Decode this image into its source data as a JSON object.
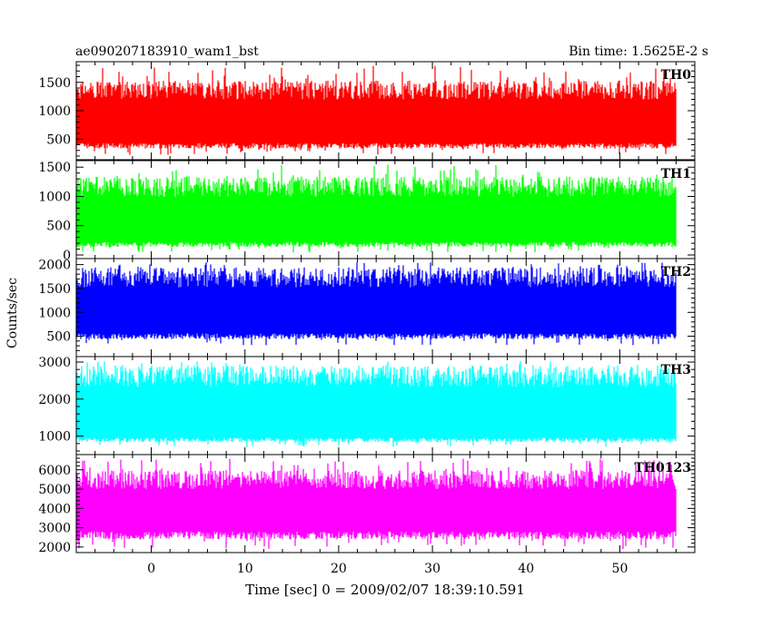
{
  "header": {
    "title": "ae090207183910_wam1_bst",
    "bin_time": "Bin time: 1.5625E-2 s"
  },
  "chart_data": {
    "type": "line",
    "xlabel": "Time [sec] 0 = 2009/02/07 18:39:10.591",
    "ylabel": "Counts/sec",
    "xlim": [
      -8.0,
      58.0
    ],
    "data_x_range": [
      -8.0,
      56.0
    ],
    "x_ticks": [
      0,
      10,
      20,
      30,
      40,
      50
    ],
    "x_tick_labels": [
      "0",
      "10",
      "20",
      "30",
      "40",
      "50"
    ],
    "x_minor_step": 2,
    "panels": [
      {
        "name": "TH0",
        "color": "#ff0000",
        "ylim": [
          200,
          1800
        ],
        "y_ticks": [
          500,
          1000,
          1500
        ],
        "y_tick_labels": [
          "500",
          "1000",
          "1500"
        ],
        "y_minor_step": 100,
        "mean": 820,
        "typical_low": 380,
        "typical_high": 1300,
        "min": 220,
        "max": 1800
      },
      {
        "name": "TH1",
        "color": "#00ff00",
        "ylim": [
          0,
          1550
        ],
        "y_ticks": [
          0,
          500,
          1000,
          1500
        ],
        "y_tick_labels": [
          "0",
          "500",
          "1000",
          "1500"
        ],
        "y_minor_step": 100,
        "mean": 600,
        "typical_low": 180,
        "typical_high": 1100,
        "min": 40,
        "max": 1550
      },
      {
        "name": "TH2",
        "color": "#0000ff",
        "ylim": [
          150,
          2050
        ],
        "y_ticks": [
          500,
          1000,
          1500,
          2000
        ],
        "y_tick_labels": [
          "500",
          "1000",
          "1500",
          "2000"
        ],
        "y_minor_step": 100,
        "mean": 1050,
        "typical_low": 500,
        "typical_high": 1650,
        "min": 300,
        "max": 2050
      },
      {
        "name": "TH3",
        "color": "#00ffff",
        "ylim": [
          600,
          3050
        ],
        "y_ticks": [
          1000,
          2000,
          3000
        ],
        "y_tick_labels": [
          "1000",
          "2000",
          "3000"
        ],
        "y_minor_step": 200,
        "mean": 1650,
        "typical_low": 900,
        "typical_high": 2500,
        "min": 700,
        "max": 3050
      },
      {
        "name": "TH0123",
        "color": "#ff00ff",
        "ylim": [
          1900,
          6600
        ],
        "y_ticks": [
          2000,
          3000,
          4000,
          5000,
          6000
        ],
        "y_tick_labels": [
          "2000",
          "3000",
          "4000",
          "5000",
          "6000"
        ],
        "y_minor_step": 200,
        "mean": 3900,
        "typical_low": 2600,
        "typical_high": 5300,
        "min": 1900,
        "max": 6600
      }
    ]
  }
}
